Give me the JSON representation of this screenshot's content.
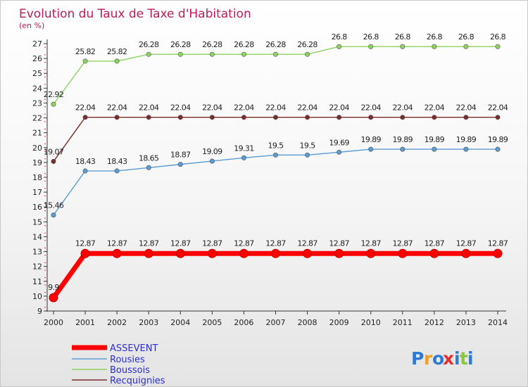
{
  "chart_data": {
    "type": "line",
    "title": "Evolution du Taux de Taxe d'Habitation",
    "ylabel": "(en %)",
    "xlabel": "",
    "categories": [
      "2000",
      "2001",
      "2002",
      "2003",
      "2004",
      "2005",
      "2006",
      "2007",
      "2008",
      "2009",
      "2010",
      "2011",
      "2012",
      "2013",
      "2014"
    ],
    "ylim": [
      9,
      27
    ],
    "yticks": [
      9,
      10,
      11,
      12,
      13,
      14,
      15,
      16,
      17,
      18,
      19,
      20,
      21,
      22,
      23,
      24,
      25,
      26,
      27
    ],
    "grid": false,
    "legend_position": "bottom-left",
    "series": [
      {
        "name": "ASSEVENT",
        "color": "#ff0000",
        "values": [
          9.9,
          12.87,
          12.87,
          12.87,
          12.87,
          12.87,
          12.87,
          12.87,
          12.87,
          12.87,
          12.87,
          12.87,
          12.87,
          12.87,
          12.87
        ],
        "labels": [
          "9.9",
          "12.87",
          "12.87",
          "12.87",
          "12.87",
          "12.87",
          "12.87",
          "12.87",
          "12.87",
          "12.87",
          "12.87",
          "12.87",
          "12.87",
          "12.87",
          "12.87"
        ]
      },
      {
        "name": "Rousies",
        "color": "#5b9bd5",
        "values": [
          15.46,
          18.43,
          18.43,
          18.65,
          18.87,
          19.09,
          19.31,
          19.5,
          19.5,
          19.69,
          19.89,
          19.89,
          19.89,
          19.89,
          19.89
        ],
        "labels": [
          "15.46",
          "18.43",
          "18.43",
          "18.65",
          "18.87",
          "19.09",
          "19.31",
          "19.5",
          "19.5",
          "19.69",
          "19.89",
          "19.89",
          "19.89",
          "19.89",
          "19.89"
        ]
      },
      {
        "name": "Boussois",
        "color": "#8dd35f",
        "values": [
          22.92,
          25.82,
          25.82,
          26.28,
          26.28,
          26.28,
          26.28,
          26.28,
          26.28,
          26.8,
          26.8,
          26.8,
          26.8,
          26.8,
          26.8
        ],
        "labels": [
          "22.92",
          "25.82",
          "25.82",
          "26.28",
          "26.28",
          "26.28",
          "26.28",
          "26.28",
          "26.28",
          "26.8",
          "26.8",
          "26.8",
          "26.8",
          "26.8",
          "26.8"
        ]
      },
      {
        "name": "Recquignies",
        "color": "#7b2b2b",
        "values": [
          19.07,
          22.04,
          22.04,
          22.04,
          22.04,
          22.04,
          22.04,
          22.04,
          22.04,
          22.04,
          22.04,
          22.04,
          22.04,
          22.04,
          22.04
        ],
        "labels": [
          "19.07",
          "22.04",
          "22.04",
          "22.04",
          "22.04",
          "22.04",
          "22.04",
          "22.04",
          "22.04",
          "22.04",
          "22.04",
          "22.04",
          "22.04",
          "22.04",
          "22.04"
        ]
      }
    ]
  },
  "branding": {
    "logo_letters": [
      "P",
      "r",
      "o",
      "x",
      "i",
      "t",
      "i"
    ],
    "logo_colors": [
      "#2b7bd6",
      "#f0a020",
      "#2b7bd6",
      "#e23030",
      "#2b7bd6",
      "#8cc43c",
      "#2b7bd6"
    ]
  }
}
